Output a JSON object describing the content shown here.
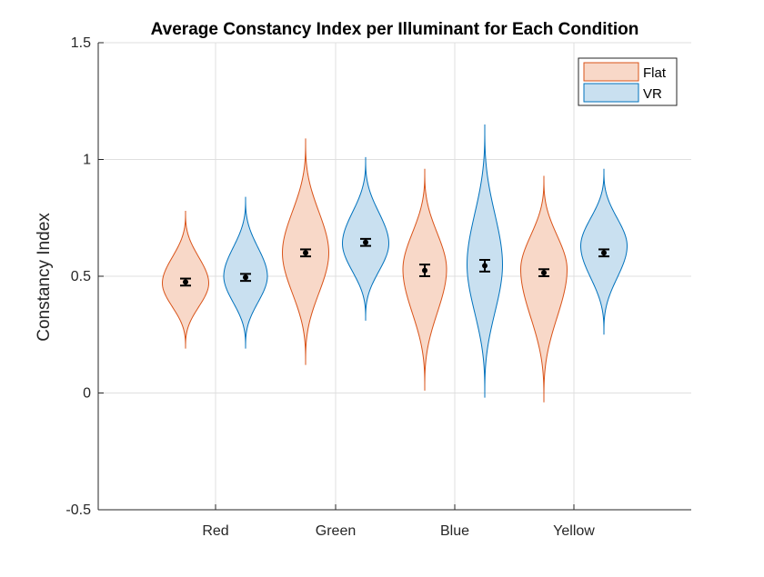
{
  "chart_data": {
    "type": "violin",
    "title": "Average Constancy Index per Illuminant for Each Condition",
    "xlabel": "",
    "ylabel": "Constancy Index",
    "categories": [
      "Red",
      "Green",
      "Blue",
      "Yellow"
    ],
    "ylim": [
      -0.5,
      1.5
    ],
    "yticks": [
      -0.5,
      0,
      0.5,
      1,
      1.5
    ],
    "ytick_labels": [
      "-0.5",
      "0",
      "0.5",
      "1",
      "1.5"
    ],
    "grid": true,
    "legend_position": "top-right",
    "series": [
      {
        "name": "Flat",
        "fill": "#f8d8c8",
        "edge": "#d95319",
        "violins": [
          {
            "category": "Red",
            "min": 0.19,
            "max": 0.78,
            "mode": 0.47,
            "width": 0.85,
            "mean": 0.475,
            "err_low": 0.46,
            "err_high": 0.49
          },
          {
            "category": "Green",
            "min": 0.12,
            "max": 1.09,
            "mode": 0.6,
            "width": 0.85,
            "mean": 0.6,
            "err_low": 0.585,
            "err_high": 0.615
          },
          {
            "category": "Blue",
            "min": 0.01,
            "max": 0.96,
            "mode": 0.53,
            "width": 0.8,
            "mean": 0.525,
            "err_low": 0.5,
            "err_high": 0.55
          },
          {
            "category": "Yellow",
            "min": -0.04,
            "max": 0.93,
            "mode": 0.53,
            "width": 0.85,
            "mean": 0.515,
            "err_low": 0.5,
            "err_high": 0.53
          }
        ]
      },
      {
        "name": "VR",
        "fill": "#c9e0f0",
        "edge": "#0072bd",
        "violins": [
          {
            "category": "Red",
            "min": 0.19,
            "max": 0.84,
            "mode": 0.5,
            "width": 0.8,
            "mean": 0.495,
            "err_low": 0.48,
            "err_high": 0.51
          },
          {
            "category": "Green",
            "min": 0.31,
            "max": 1.01,
            "mode": 0.64,
            "width": 0.85,
            "mean": 0.645,
            "err_low": 0.63,
            "err_high": 0.66
          },
          {
            "category": "Blue",
            "min": -0.02,
            "max": 1.15,
            "mode": 0.55,
            "width": 0.65,
            "mean": 0.545,
            "err_low": 0.52,
            "err_high": 0.57
          },
          {
            "category": "Yellow",
            "min": 0.25,
            "max": 0.96,
            "mode": 0.63,
            "width": 0.85,
            "mean": 0.6,
            "err_low": 0.585,
            "err_high": 0.615
          }
        ]
      }
    ]
  }
}
